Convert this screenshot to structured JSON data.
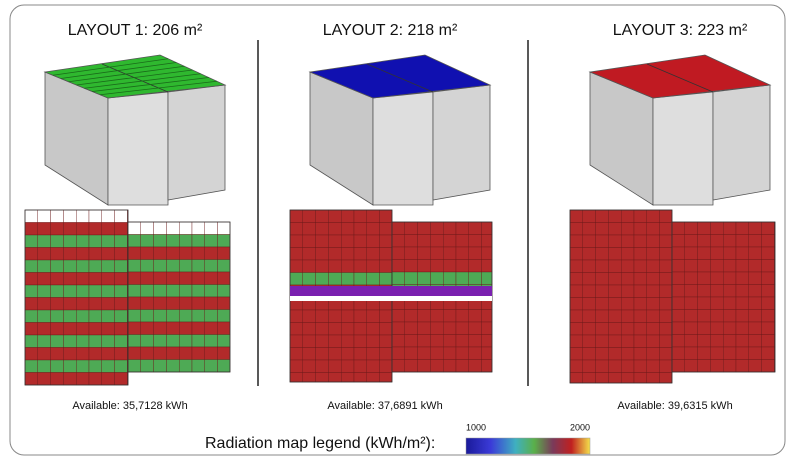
{
  "layouts": [
    {
      "title": "LAYOUT 1: 206 m²",
      "available": "Available: 35,7128 kWh"
    },
    {
      "title": "LAYOUT 2: 218 m²",
      "available": "Available: 37,6891 kWh"
    },
    {
      "title": "LAYOUT 3: 223 m²",
      "available": "Available: 39,6315 kWh"
    }
  ],
  "legend": {
    "title": "Radiation map legend (kWh/m²):",
    "min_label": "1000",
    "max_label": "2000"
  }
}
